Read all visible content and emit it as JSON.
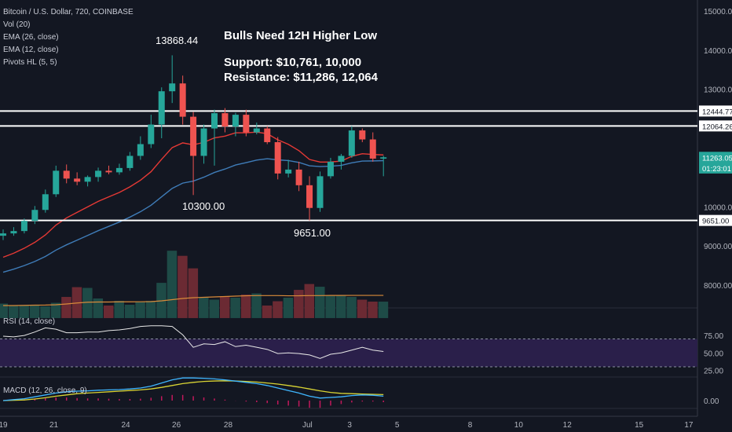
{
  "header": {
    "symbol": "Bitcoin / U.S. Dollar, 720, COINBASE",
    "indicators": [
      "Vol (20)",
      "EMA (26, close)",
      "EMA (12, close)",
      "Pivots HL (5, 5)"
    ]
  },
  "annotations": {
    "title": "Bulls Need 12H Higher Low",
    "support": "Support: $10,761, 10,000",
    "resistance": "Resistance: $11,286, 12,064",
    "pivot_high": "13868.44",
    "pivot_low_1": "10300.00",
    "pivot_low_2": "9651.00"
  },
  "panes": {
    "rsi_label": "RSI (14, close)",
    "macd_label": "MACD (12, 26, close, 9)"
  },
  "colors": {
    "background": "#131722",
    "up": "#26a69a",
    "down": "#ef5350",
    "ema12": "#e53935",
    "ema26": "#3f7cb8",
    "vol_ma": "#d88a3a",
    "rsi_line": "#e8e8e8",
    "rsi_band": "#2a1f4a",
    "macd_line": "#3fb6ff",
    "signal_line": "#d9d434",
    "histogram": "#c2185b",
    "level_line": "#ffffff"
  },
  "chart_data": {
    "type": "candlestick",
    "symbol": "Bitcoin / U.S. Dollar",
    "interval": "720",
    "exchange": "COINBASE",
    "y_ticks": [
      "15000.00",
      "14000.00",
      "13000.00",
      "10000.00",
      "9000.00",
      "8000.00"
    ],
    "x_ticks": [
      "19",
      "21",
      "24",
      "26",
      "28",
      "Jul",
      "3",
      "5",
      "8",
      "10",
      "12",
      "15",
      "17"
    ],
    "price_tags": [
      {
        "label": "12444.77",
        "value": 12444.77,
        "style": "white"
      },
      {
        "label": "12064.26",
        "value": 12064.26,
        "style": "white"
      },
      {
        "label": "11263.05",
        "value": 11263.05,
        "style": "accent"
      },
      {
        "label": "01:23:01",
        "value": 10990,
        "style": "accent"
      },
      {
        "label": "9651.00",
        "value": 9651.0,
        "style": "white"
      }
    ],
    "horizontal_levels": [
      12444.77,
      12064.26,
      9651.0
    ],
    "candles": [
      {
        "o": 9260,
        "h": 9420,
        "l": 9150,
        "c": 9320
      },
      {
        "o": 9320,
        "h": 9480,
        "l": 9260,
        "c": 9380
      },
      {
        "o": 9380,
        "h": 9700,
        "l": 9320,
        "c": 9640
      },
      {
        "o": 9640,
        "h": 10020,
        "l": 9560,
        "c": 9920
      },
      {
        "o": 9920,
        "h": 10440,
        "l": 9850,
        "c": 10320
      },
      {
        "o": 10320,
        "h": 11050,
        "l": 10250,
        "c": 10920
      },
      {
        "o": 10920,
        "h": 11080,
        "l": 10600,
        "c": 10720
      },
      {
        "o": 10720,
        "h": 10880,
        "l": 10550,
        "c": 10640
      },
      {
        "o": 10640,
        "h": 10800,
        "l": 10520,
        "c": 10760
      },
      {
        "o": 10760,
        "h": 11000,
        "l": 10640,
        "c": 10920
      },
      {
        "o": 10920,
        "h": 11050,
        "l": 10830,
        "c": 10880
      },
      {
        "o": 10880,
        "h": 11100,
        "l": 10820,
        "c": 10990
      },
      {
        "o": 10990,
        "h": 11400,
        "l": 10920,
        "c": 11300
      },
      {
        "o": 11300,
        "h": 11800,
        "l": 11200,
        "c": 11600
      },
      {
        "o": 11600,
        "h": 12350,
        "l": 11500,
        "c": 12100
      },
      {
        "o": 12100,
        "h": 13050,
        "l": 11750,
        "c": 12950
      },
      {
        "o": 12950,
        "h": 13868.44,
        "l": 12650,
        "c": 13150
      },
      {
        "o": 13150,
        "h": 13350,
        "l": 12100,
        "c": 12300
      },
      {
        "o": 12300,
        "h": 12420,
        "l": 10300,
        "c": 11300
      },
      {
        "o": 11300,
        "h": 12100,
        "l": 11100,
        "c": 12000
      },
      {
        "o": 12000,
        "h": 12480,
        "l": 11050,
        "c": 12390
      },
      {
        "o": 12390,
        "h": 12520,
        "l": 11900,
        "c": 12050
      },
      {
        "o": 12050,
        "h": 12400,
        "l": 11800,
        "c": 12350
      },
      {
        "o": 12350,
        "h": 12480,
        "l": 11800,
        "c": 11900
      },
      {
        "o": 11900,
        "h": 12150,
        "l": 11850,
        "c": 12000
      },
      {
        "o": 12000,
        "h": 12060,
        "l": 11600,
        "c": 11650
      },
      {
        "o": 11650,
        "h": 11780,
        "l": 10700,
        "c": 10850
      },
      {
        "o": 10850,
        "h": 11200,
        "l": 10750,
        "c": 10950
      },
      {
        "o": 10950,
        "h": 11150,
        "l": 10400,
        "c": 10550
      },
      {
        "o": 10550,
        "h": 10780,
        "l": 9651,
        "c": 9970
      },
      {
        "o": 9970,
        "h": 10900,
        "l": 9870,
        "c": 10780
      },
      {
        "o": 10780,
        "h": 11250,
        "l": 10720,
        "c": 11150
      },
      {
        "o": 11150,
        "h": 11350,
        "l": 10950,
        "c": 11300
      },
      {
        "o": 11300,
        "h": 12060,
        "l": 11250,
        "c": 11950
      },
      {
        "o": 11950,
        "h": 12000,
        "l": 11650,
        "c": 11720
      },
      {
        "o": 11720,
        "h": 11900,
        "l": 11150,
        "c": 11230
      },
      {
        "o": 11230,
        "h": 11300,
        "l": 10780,
        "c": 11263.05
      }
    ],
    "volume": [
      8050,
      7990,
      8000,
      8020,
      7980,
      8070,
      8220,
      8470,
      8450,
      8180,
      8000,
      8120,
      8020,
      8090,
      8120,
      8580,
      9400,
      9270,
      8950,
      8210,
      8150,
      8240,
      8200,
      8280,
      8310,
      8000,
      8110,
      8200,
      8400,
      8550,
      8480,
      8250,
      8270,
      8220,
      8150,
      8100,
      8100
    ],
    "volume_ma": [
      8000,
      8000,
      8005,
      8010,
      8012,
      8020,
      8040,
      8065,
      8085,
      8090,
      8090,
      8095,
      8095,
      8097,
      8100,
      8120,
      8150,
      8180,
      8200,
      8210,
      8220,
      8230,
      8240,
      8250,
      8255,
      8255,
      8255,
      8250,
      8250,
      8255,
      8255,
      8258,
      8258,
      8260,
      8260,
      8260,
      8260
    ],
    "rsi_ticks": [
      "75.00",
      "50.00",
      "25.00"
    ],
    "rsi_band": [
      30,
      70
    ],
    "rsi": [
      74,
      73,
      75,
      80,
      86,
      84,
      79,
      79,
      80,
      80,
      82,
      83,
      85,
      88,
      89,
      89,
      88,
      76,
      58,
      63,
      62,
      66,
      59,
      61,
      58,
      55,
      49,
      50,
      49,
      47,
      42,
      48,
      50,
      54,
      58,
      54,
      52
    ],
    "macd_ticks": [
      "0.00"
    ],
    "macd": [
      0,
      15,
      30,
      60,
      90,
      120,
      140,
      150,
      155,
      165,
      170,
      175,
      185,
      200,
      230,
      280,
      330,
      360,
      360,
      355,
      345,
      330,
      310,
      290,
      270,
      240,
      200,
      160,
      120,
      70,
      40,
      50,
      60,
      80,
      90,
      85,
      70
    ],
    "signal": [
      0,
      5,
      10,
      25,
      45,
      70,
      90,
      110,
      120,
      130,
      140,
      150,
      160,
      170,
      185,
      210,
      240,
      270,
      290,
      305,
      312,
      315,
      312,
      305,
      295,
      280,
      262,
      240,
      215,
      185,
      155,
      130,
      115,
      110,
      105,
      100,
      95
    ],
    "histogram": [
      0,
      10,
      20,
      35,
      45,
      50,
      50,
      40,
      35,
      35,
      30,
      25,
      25,
      30,
      45,
      70,
      90,
      90,
      70,
      50,
      33,
      15,
      -2,
      -15,
      -25,
      -40,
      -62,
      -80,
      -95,
      -115,
      -115,
      -80,
      -55,
      -30,
      -15,
      -15,
      -25
    ]
  }
}
